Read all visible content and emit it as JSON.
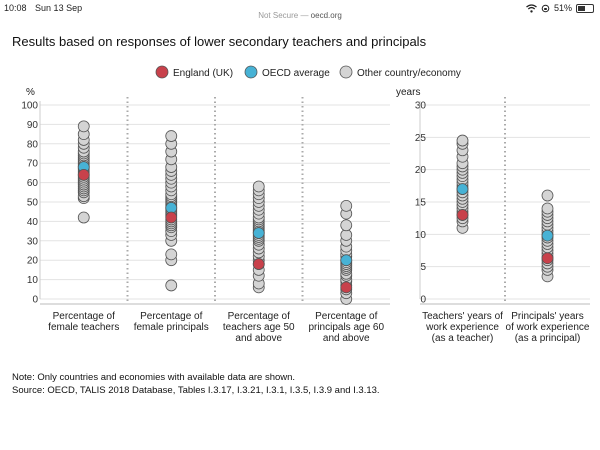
{
  "status": {
    "time": "10:08",
    "date": "Sun 13 Sep",
    "battery": "51%",
    "battery_level": 0.51
  },
  "address": {
    "security": "Not Secure",
    "separator": " — ",
    "host": "oecd.org"
  },
  "title": "Results based on responses of lower secondary teachers and principals",
  "legend": [
    {
      "label": "England (UK)",
      "color": "#c8414b"
    },
    {
      "label": "OECD average",
      "color": "#47b2d5"
    },
    {
      "label": "Other country/economy",
      "color": "#d4d4d4"
    }
  ],
  "note": "Note: Only countries and economies with available data are shown.",
  "source": "Source: OECD, TALIS 2018 Database, Tables I.3.17, I.3.21, I.3.1, I.3.5, I.3.9 and I.3.13.",
  "chart_data": [
    {
      "type": "scatter",
      "ylabel": "%",
      "ylim": [
        0,
        100
      ],
      "yticks": [
        0,
        10,
        20,
        30,
        40,
        50,
        60,
        70,
        80,
        90,
        100
      ],
      "categories": [
        [
          "Percentage of",
          "female teachers"
        ],
        [
          "Percentage of",
          "female principals"
        ],
        [
          "Percentage of",
          "teachers age 50",
          "and above"
        ],
        [
          "Percentage of",
          "principals age 60",
          "and above"
        ]
      ],
      "others": [
        [
          42,
          52,
          53,
          55,
          56,
          57,
          58,
          59,
          60,
          61,
          62,
          63,
          64,
          65,
          66,
          67,
          68,
          69,
          70,
          71,
          72,
          73,
          74,
          75,
          76,
          78,
          80,
          82,
          85,
          89
        ],
        [
          7,
          20,
          23,
          30,
          33,
          35,
          37,
          38,
          39,
          40,
          41,
          43,
          44,
          45,
          46,
          47,
          48,
          49,
          50,
          51,
          52,
          53,
          54,
          56,
          58,
          60,
          62,
          64,
          66,
          68,
          72,
          76,
          80,
          84
        ],
        [
          6,
          8,
          12,
          15,
          18,
          20,
          22,
          24,
          26,
          28,
          30,
          31,
          32,
          33,
          34,
          35,
          36,
          37,
          38,
          39,
          40,
          41,
          42,
          44,
          46,
          48,
          50,
          52,
          54,
          56,
          58
        ],
        [
          0,
          3,
          5,
          7,
          9,
          10,
          12,
          13,
          15,
          16,
          17,
          18,
          19,
          20,
          22,
          23,
          25,
          27,
          30,
          33,
          38,
          44,
          48
        ]
      ],
      "oecd": [
        68,
        47,
        34,
        20
      ],
      "england": [
        64,
        42,
        18,
        6
      ]
    },
    {
      "type": "scatter",
      "ylabel": "years",
      "ylim": [
        0,
        30
      ],
      "yticks": [
        0,
        5,
        10,
        15,
        20,
        25,
        30
      ],
      "categories": [
        [
          "Teachers' years of",
          "work experience",
          "(as a teacher)"
        ],
        [
          "Principals' years",
          "of work experience",
          "(as a principal)"
        ]
      ],
      "others": [
        [
          11,
          12,
          12.5,
          13,
          13.5,
          14,
          14.5,
          15,
          15.5,
          16,
          16.5,
          17,
          17.5,
          18,
          18.5,
          19,
          19.5,
          20,
          20.5,
          21,
          22,
          23,
          24,
          24.5
        ],
        [
          3.5,
          4.5,
          5,
          5.5,
          6,
          6.5,
          7,
          7.5,
          8,
          8.5,
          9,
          9.5,
          10,
          10.5,
          11,
          11.5,
          12,
          12.5,
          13,
          13.5,
          14,
          16
        ]
      ],
      "oecd": [
        17,
        9.8
      ],
      "england": [
        13,
        6.3
      ]
    }
  ]
}
